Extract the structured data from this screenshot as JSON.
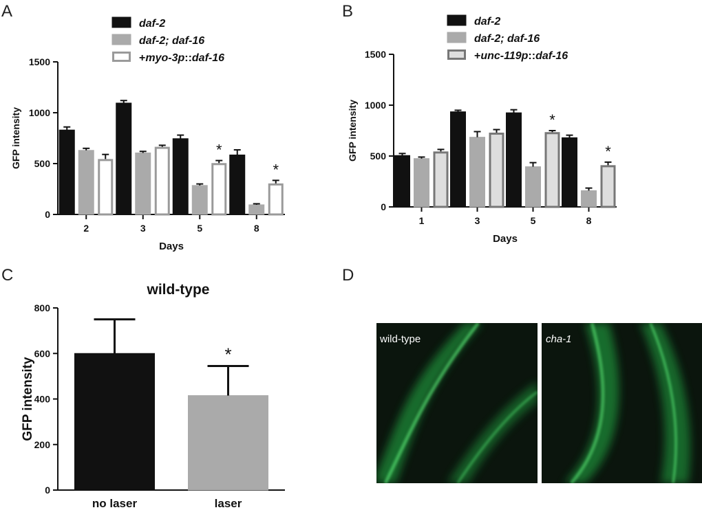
{
  "colors": {
    "black": "#111111",
    "gray": "#aaaaaa",
    "white": "#ffffff",
    "light_gray": "#dedede",
    "outline_gray": "#9a9a9a",
    "dark_outline": "#777777",
    "micro_bg": "#0b150d",
    "gfp": "#35d65a"
  },
  "panels": {
    "A": {
      "letter": "A"
    },
    "B": {
      "letter": "B"
    },
    "C": {
      "letter": "C"
    },
    "D": {
      "letter": "D",
      "images": [
        {
          "label": "wild-type",
          "italic": false
        },
        {
          "label": "cha-1",
          "italic": true
        }
      ]
    }
  },
  "chart_data": [
    {
      "panel": "A",
      "type": "bar",
      "categories": [
        "2",
        "3",
        "5",
        "8"
      ],
      "xlabel": "Days",
      "ylabel": "GFP intensity",
      "ylim": [
        0,
        1500
      ],
      "yticks": [
        0,
        500,
        1000,
        1500
      ],
      "legend_placement": "top",
      "series": [
        {
          "name_parts": [
            [
              "daf-2",
              true
            ]
          ],
          "style": "black",
          "values": [
            830,
            1095,
            745,
            585
          ],
          "errors": [
            30,
            25,
            35,
            50
          ]
        },
        {
          "name_parts": [
            [
              "daf-2; daf-16",
              true
            ]
          ],
          "style": "gray",
          "values": [
            630,
            605,
            285,
            95
          ],
          "errors": [
            20,
            15,
            15,
            10
          ]
        },
        {
          "name_parts": [
            [
              "+",
              false
            ],
            [
              "myo-3p",
              true
            ],
            [
              "::",
              false
            ],
            [
              "daf-16",
              true
            ]
          ],
          "style": "white",
          "values": [
            545,
            665,
            505,
            305
          ],
          "errors": [
            45,
            15,
            25,
            30
          ]
        }
      ],
      "annotations": [
        {
          "series": 2,
          "category": 2,
          "text": "*"
        },
        {
          "series": 2,
          "category": 3,
          "text": "*"
        }
      ]
    },
    {
      "panel": "B",
      "type": "bar",
      "categories": [
        "1",
        "3",
        "5",
        "8"
      ],
      "xlabel": "Days",
      "ylabel": "GFP intensity",
      "ylim": [
        0,
        1500
      ],
      "yticks": [
        0,
        500,
        1000,
        1500
      ],
      "legend_placement": "top",
      "series": [
        {
          "name_parts": [
            [
              "daf-2",
              true
            ]
          ],
          "style": "black",
          "values": [
            505,
            935,
            925,
            680
          ],
          "errors": [
            20,
            15,
            30,
            25
          ]
        },
        {
          "name_parts": [
            [
              "daf-2; daf-16",
              true
            ]
          ],
          "style": "gray",
          "values": [
            475,
            685,
            395,
            160
          ],
          "errors": [
            15,
            55,
            40,
            25
          ]
        },
        {
          "name_parts": [
            [
              "+",
              false
            ],
            [
              "unc-119p",
              true
            ],
            [
              "::",
              false
            ],
            [
              "daf-16",
              true
            ]
          ],
          "style": "light",
          "values": [
            545,
            730,
            735,
            410
          ],
          "errors": [
            20,
            30,
            15,
            30
          ]
        }
      ],
      "annotations": [
        {
          "series": 2,
          "category": 2,
          "text": "*"
        },
        {
          "series": 2,
          "category": 3,
          "text": "*"
        }
      ]
    },
    {
      "panel": "C",
      "type": "bar",
      "title": "wild-type",
      "categories": [
        "no laser",
        "laser"
      ],
      "ylabel": "GFP intensity",
      "ylim": [
        0,
        800
      ],
      "yticks": [
        0,
        200,
        400,
        600,
        800
      ],
      "series": [
        {
          "values": [
            600,
            415
          ],
          "errors": [
            150,
            130
          ],
          "styles": [
            "black",
            "gray"
          ]
        }
      ],
      "annotations": [
        {
          "series": 0,
          "category": 1,
          "text": "*"
        }
      ]
    }
  ]
}
